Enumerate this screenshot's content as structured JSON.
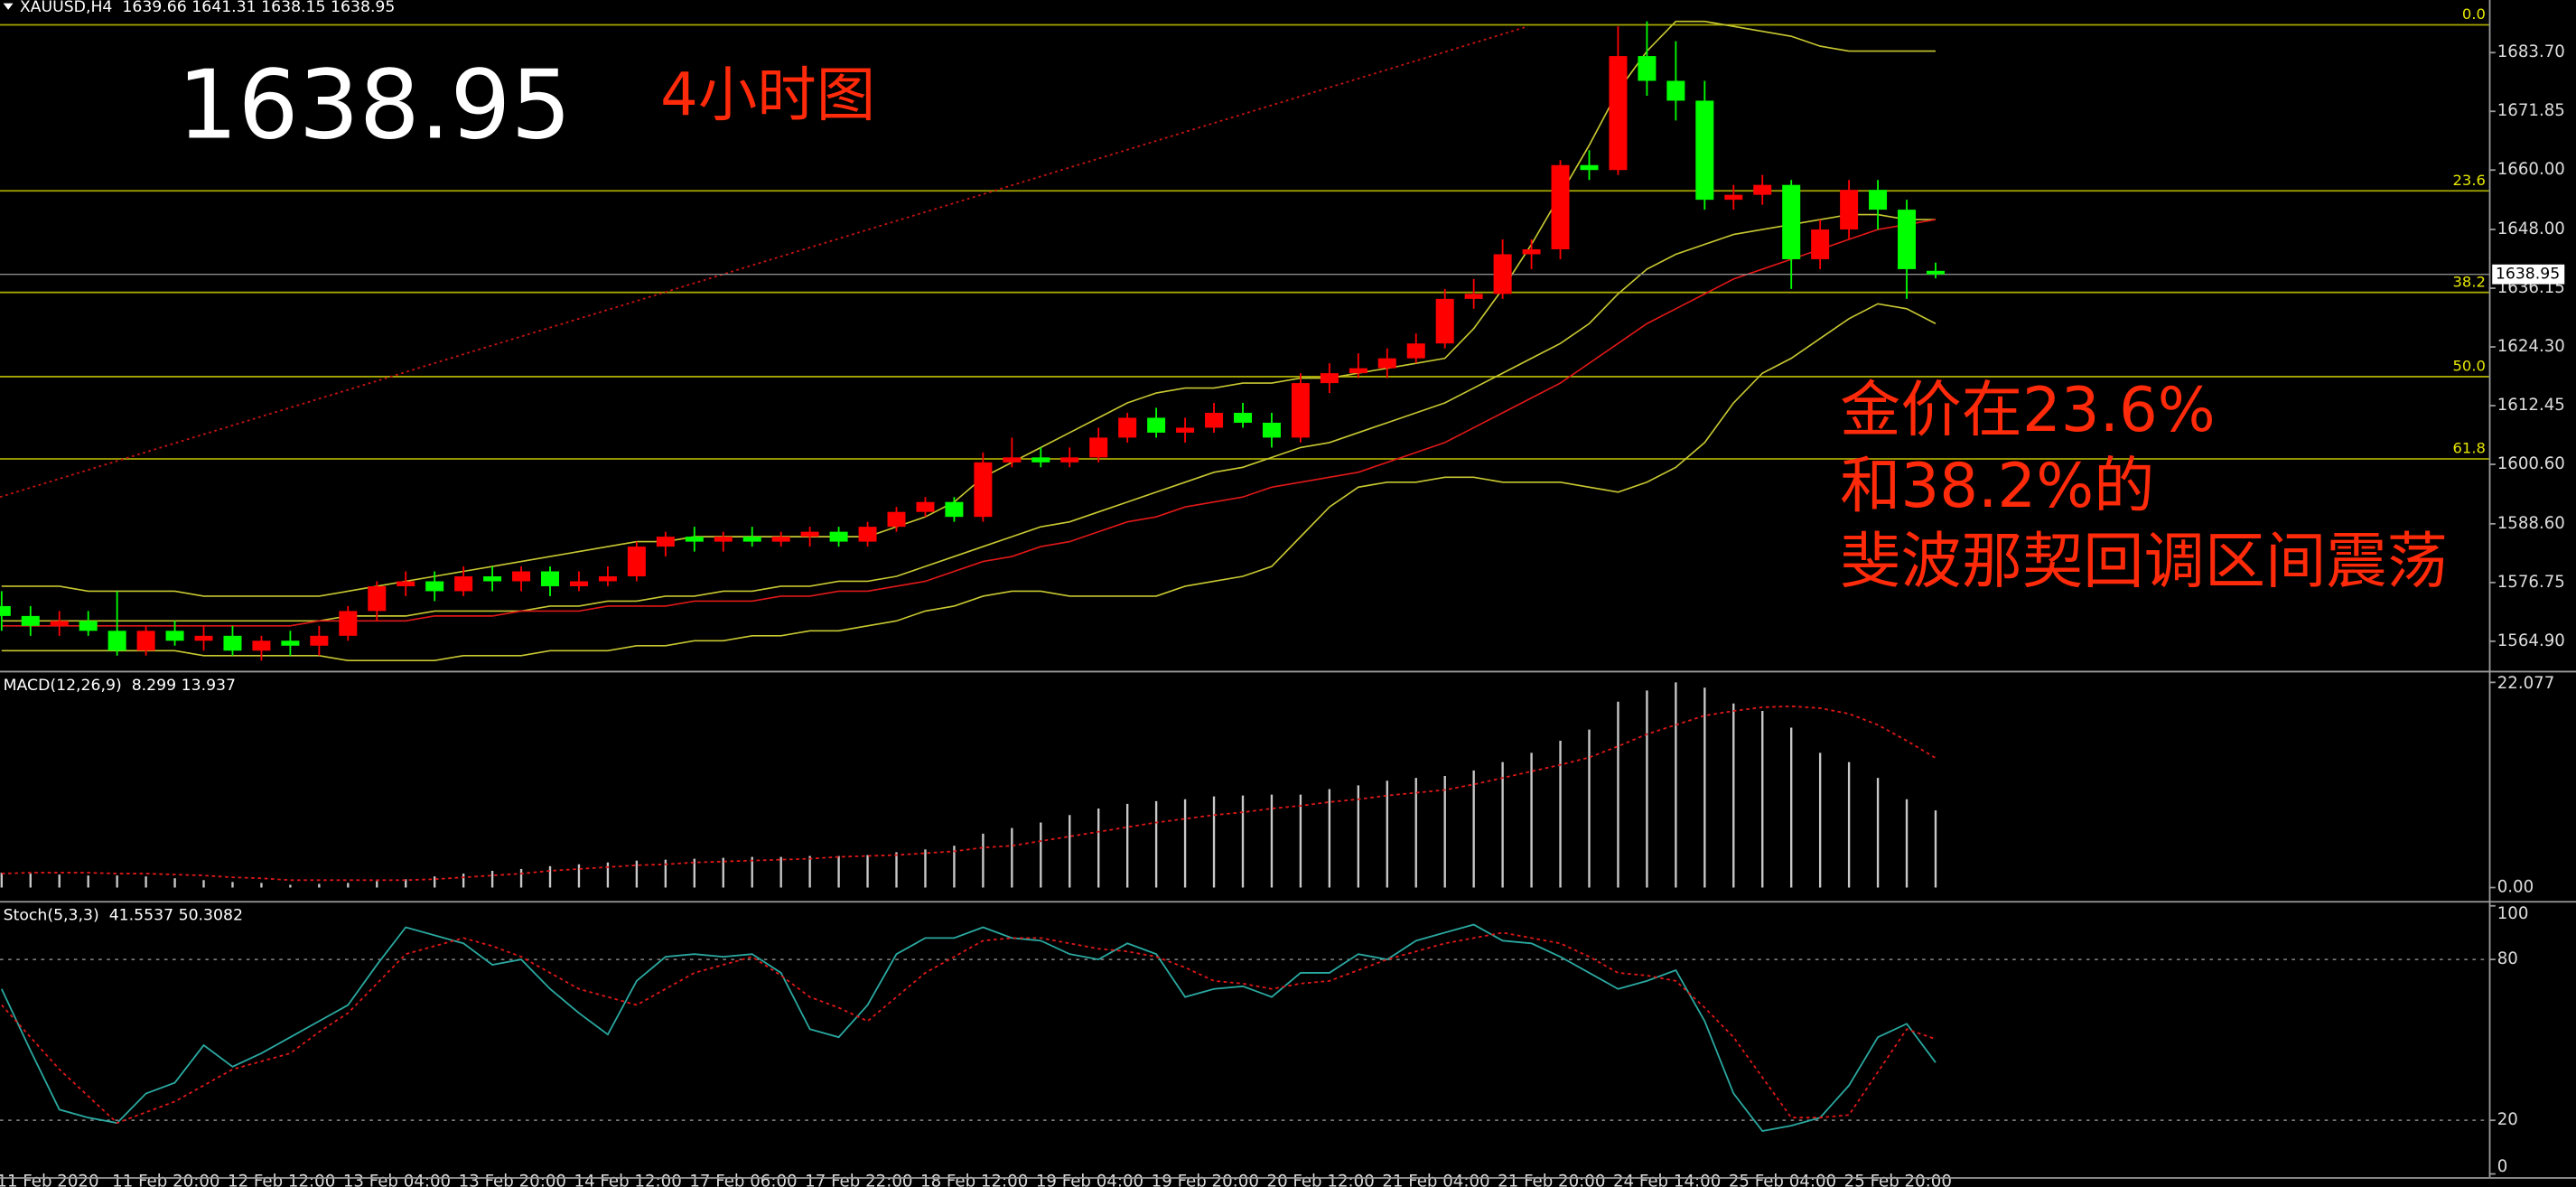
{
  "chart_data": [
    {
      "type": "candlestick",
      "symbol": "XAUUSD,H4",
      "annotations": [
        "4小时图",
        "金价在23.6%",
        "和38.2%的",
        "斐波那契回调区间震荡"
      ],
      "categories": [
        "11 Feb 2020",
        null,
        null,
        null,
        "11 Feb 20:00",
        null,
        null,
        null,
        "12 Feb 12:00",
        null,
        null,
        null,
        "13 Feb 04:00",
        null,
        null,
        null,
        "13 Feb 20:00",
        null,
        null,
        null,
        "14 Feb 12:00",
        null,
        null,
        null,
        "17 Feb 06:00",
        null,
        null,
        null,
        "17 Feb 22:00",
        null,
        null,
        null,
        "18 Feb 12:00",
        null,
        null,
        null,
        "19 Feb 04:00",
        null,
        null,
        null,
        "19 Feb 20:00",
        null,
        null,
        null,
        "20 Feb 12:00",
        null,
        null,
        null,
        "21 Feb 04:00",
        null,
        null,
        null,
        "21 Feb 20:00",
        null,
        null,
        null,
        "24 Feb 14:00",
        null,
        null,
        null,
        "25 Feb 04:00",
        null,
        null,
        null,
        "25 Feb 20:00",
        null,
        null,
        null
      ],
      "open": [
        1572,
        1570,
        1568,
        1569,
        1567,
        1563,
        1567,
        1565,
        1566,
        1563,
        1565,
        1564,
        1566,
        1571,
        1576,
        1577,
        1575,
        1578,
        1577,
        1579,
        1576,
        1577,
        1578,
        1584,
        1586,
        1585,
        1586,
        1585,
        1586,
        1587,
        1585,
        1588,
        1591,
        1593,
        1590,
        1601,
        1602,
        1601,
        1602,
        1606,
        1610,
        1607,
        1608,
        1611,
        1609,
        1606,
        1617,
        1619,
        1620,
        1622,
        1625,
        1634,
        1635,
        1643,
        1644,
        1661,
        1660,
        1683,
        1678,
        1674,
        1654,
        1655,
        1657,
        1642,
        1648,
        1656,
        1652,
        1639.66
      ],
      "high": [
        1575,
        1572,
        1571,
        1571,
        1575,
        1568,
        1569,
        1568,
        1568,
        1566,
        1567,
        1568,
        1572,
        1577,
        1579,
        1579,
        1580,
        1580,
        1580,
        1580,
        1579,
        1580,
        1585,
        1587,
        1588,
        1587,
        1588,
        1587,
        1588,
        1588,
        1589,
        1592,
        1594,
        1594,
        1603,
        1606,
        1604,
        1604,
        1608,
        1611,
        1612,
        1610,
        1613,
        1613,
        1611,
        1619,
        1621,
        1623,
        1624,
        1627,
        1636,
        1638,
        1646,
        1646,
        1662,
        1664,
        1689,
        1690,
        1686,
        1678,
        1657,
        1659,
        1658,
        1650,
        1658,
        1658,
        1654,
        1641.31
      ],
      "low": [
        1567,
        1566,
        1566,
        1566,
        1562,
        1562,
        1564,
        1563,
        1562,
        1561,
        1562,
        1562,
        1565,
        1569,
        1574,
        1573,
        1574,
        1575,
        1575,
        1574,
        1575,
        1576,
        1577,
        1582,
        1583,
        1583,
        1584,
        1584,
        1584,
        1584,
        1584,
        1587,
        1590,
        1589,
        1589,
        1600,
        1600,
        1600,
        1601,
        1605,
        1606,
        1605,
        1607,
        1608,
        1604,
        1605,
        1615,
        1618,
        1618,
        1621,
        1624,
        1632,
        1634,
        1640,
        1642,
        1658,
        1659,
        1675,
        1670,
        1652,
        1652,
        1653,
        1636,
        1640,
        1646,
        1648,
        1634,
        1638.15
      ],
      "close": [
        1570,
        1568,
        1569,
        1567,
        1563,
        1567,
        1565,
        1566,
        1563,
        1565,
        1564,
        1566,
        1571,
        1576,
        1577,
        1575,
        1578,
        1577,
        1579,
        1576,
        1577,
        1578,
        1584,
        1586,
        1585,
        1586,
        1585,
        1586,
        1587,
        1585,
        1588,
        1591,
        1593,
        1590,
        1601,
        1602,
        1601,
        1602,
        1606,
        1610,
        1607,
        1608,
        1611,
        1609,
        1606,
        1617,
        1619,
        1620,
        1622,
        1625,
        1634,
        1635,
        1643,
        1644,
        1661,
        1660,
        1683,
        1678,
        1674,
        1654,
        1655,
        1657,
        1642,
        1648,
        1656,
        1652,
        1640,
        1638.95
      ],
      "up_color": "#ff0000",
      "down_color": "#00ff00",
      "ylim": [
        1558.94,
        1691.0
      ],
      "yticks": [
        {
          "value": 1683.7,
          "label": "1683.70"
        },
        1671.85,
        {
          "value": 1660,
          "label": "1660.00"
        },
        {
          "value": 1648,
          "label": "1648.00"
        },
        1636.15,
        {
          "value": 1624.3,
          "label": "1624.30"
        },
        1612.45,
        {
          "value": 1600.6,
          "label": "1600.60"
        },
        {
          "value": 1588.6,
          "label": "1588.60"
        },
        1576.75,
        {
          "value": 1564.9,
          "label": "1564.90"
        }
      ],
      "grid": false,
      "series": [
        {
          "color": "#c8c832",
          "values": [
            1576,
            1576,
            1576,
            1575,
            1575,
            1575,
            1575,
            1574,
            1574,
            1574,
            1574,
            1574,
            1575,
            1576,
            1577,
            1578,
            1579,
            1580,
            1581,
            1582,
            1583,
            1584,
            1585,
            1585,
            1586,
            1586,
            1586,
            1586,
            1586,
            1586,
            1586,
            1588,
            1590,
            1593,
            1598,
            1601,
            1604,
            1607,
            1610,
            1613,
            1615,
            1616,
            1616,
            1617,
            1617,
            1618,
            1618,
            1619,
            1620,
            1621,
            1622,
            1628,
            1636,
            1645,
            1655,
            1665,
            1676,
            1684,
            1690,
            1690,
            1689,
            1688,
            1687,
            1685,
            1684,
            1684,
            1684,
            1684
          ]
        },
        {
          "color": "#c8c832",
          "values": [
            1569,
            1569,
            1569,
            1569,
            1569,
            1569,
            1569,
            1569,
            1569,
            1569,
            1569,
            1569,
            1570,
            1570,
            1570,
            1571,
            1571,
            1571,
            1571,
            1572,
            1572,
            1573,
            1573,
            1574,
            1574,
            1575,
            1575,
            1576,
            1576,
            1577,
            1577,
            1578,
            1580,
            1582,
            1584,
            1586,
            1588,
            1589,
            1591,
            1593,
            1595,
            1597,
            1599,
            1600,
            1602,
            1604,
            1605,
            1607,
            1609,
            1611,
            1613,
            1616,
            1619,
            1622,
            1625,
            1629,
            1635,
            1640,
            1643,
            1645,
            1647,
            1648,
            1649,
            1650,
            1651,
            1651,
            1650,
            1650
          ]
        },
        {
          "color": "#c8c832",
          "values": [
            1563,
            1563,
            1563,
            1563,
            1563,
            1563,
            1563,
            1562,
            1562,
            1562,
            1562,
            1562,
            1561,
            1561,
            1561,
            1561,
            1562,
            1562,
            1562,
            1563,
            1563,
            1563,
            1564,
            1564,
            1565,
            1565,
            1566,
            1566,
            1567,
            1567,
            1568,
            1569,
            1571,
            1572,
            1574,
            1575,
            1575,
            1574,
            1574,
            1574,
            1574,
            1576,
            1577,
            1578,
            1580,
            1586,
            1592,
            1596,
            1597,
            1597,
            1598,
            1598,
            1597,
            1597,
            1597,
            1596,
            1595,
            1597,
            1600,
            1605,
            1613,
            1619,
            1622,
            1626,
            1630,
            1633,
            1632,
            1629
          ]
        },
        {
          "color": "#e01818",
          "values": [
            1568,
            1568,
            1568,
            1568,
            1568,
            1568,
            1568,
            1568,
            1568,
            1568,
            1568,
            1569,
            1569,
            1569,
            1569,
            1570,
            1570,
            1570,
            1571,
            1571,
            1571,
            1572,
            1572,
            1572,
            1573,
            1573,
            1573,
            1574,
            1574,
            1575,
            1575,
            1576,
            1577,
            1579,
            1581,
            1582,
            1584,
            1585,
            1587,
            1589,
            1590,
            1592,
            1593,
            1594,
            1596,
            1597,
            1598,
            1599,
            1601,
            1603,
            1605,
            1608,
            1611,
            1614,
            1617,
            1621,
            1625,
            1629,
            1632,
            1635,
            1638,
            1640,
            1642,
            1644,
            1646,
            1648,
            1649,
            1650
          ]
        }
      ],
      "fib_color": "#a8a800",
      "fib_levels": [
        {
          "label": "0.0",
          "value": 1689.3
        },
        {
          "label": "23.6",
          "value": 1655.8
        },
        {
          "label": "38.2",
          "value": 1635.3
        },
        {
          "label": "50.0",
          "value": 1618.3
        },
        {
          "label": "61.8",
          "value": 1601.7
        }
      ],
      "trendline": {
        "color": "#c81414",
        "values": [
          1594,
          1689
        ]
      }
    },
    {
      "type": "bar",
      "title": "MACD(12,26,9)",
      "ylim": [
        -1.44,
        22.97
      ],
      "yticks": [
        22.077,
        {
          "value": 0,
          "label": "0.00"
        }
      ],
      "series": [
        {
          "type": "bar",
          "color": "#c8c8c8",
          "values": [
            1.6,
            1.5,
            1.4,
            1.3,
            1.3,
            1.2,
            1.0,
            0.8,
            0.6,
            0.5,
            0.3,
            0.4,
            0.5,
            0.7,
            0.9,
            1.2,
            1.5,
            1.8,
            2.0,
            2.3,
            2.5,
            2.7,
            2.9,
            3.0,
            3.1,
            3.2,
            3.3,
            3.3,
            3.4,
            3.4,
            3.5,
            3.8,
            4.1,
            4.5,
            5.8,
            6.4,
            7.0,
            7.8,
            8.5,
            9.0,
            9.3,
            9.5,
            9.8,
            9.9,
            10.0,
            10.0,
            10.6,
            11.0,
            11.5,
            11.8,
            12.0,
            12.6,
            13.5,
            14.5,
            15.8,
            17.0,
            20.0,
            21.2,
            22.077,
            21.5,
            19.8,
            19.0,
            17.2,
            14.5,
            13.5,
            11.8,
            9.5,
            8.299
          ]
        },
        {
          "type": "line",
          "color": "#e01818",
          "values": [
            1.5,
            1.6,
            1.6,
            1.6,
            1.5,
            1.5,
            1.4,
            1.3,
            1.1,
            1.0,
            0.8,
            0.8,
            0.8,
            0.8,
            0.8,
            0.9,
            1.1,
            1.3,
            1.5,
            1.8,
            2.0,
            2.2,
            2.4,
            2.5,
            2.7,
            2.8,
            2.9,
            3.0,
            3.1,
            3.3,
            3.4,
            3.5,
            3.7,
            3.9,
            4.3,
            4.5,
            5.0,
            5.5,
            6.0,
            6.5,
            7.0,
            7.4,
            7.8,
            8.1,
            8.5,
            8.8,
            9.2,
            9.5,
            9.9,
            10.2,
            10.5,
            11.1,
            11.8,
            12.5,
            13.2,
            14.0,
            15.2,
            16.5,
            17.5,
            18.5,
            19.0,
            19.4,
            19.5,
            19.3,
            18.7,
            17.5,
            15.8,
            13.937
          ]
        }
      ]
    },
    {
      "type": "line",
      "title": "Stoch(5,3,3)",
      "ylim": [
        -1.2,
        100.6
      ],
      "yticks": [
        100,
        80,
        20,
        0
      ],
      "series": [
        {
          "color": "#2aa8a0",
          "values": [
            69,
            46,
            24,
            21,
            19,
            30,
            34,
            48,
            40,
            45,
            51,
            57,
            63,
            78,
            92,
            89,
            86,
            78,
            80,
            69,
            60,
            52,
            72,
            81,
            82,
            81,
            82,
            75,
            54,
            51,
            63,
            82,
            88,
            88,
            92,
            88,
            87,
            82,
            80,
            86,
            82,
            66,
            69,
            70,
            66,
            75,
            75,
            82,
            80,
            87,
            90,
            93,
            87,
            86,
            81,
            75,
            69,
            72,
            76,
            57,
            30,
            16,
            18,
            21,
            33,
            51,
            56,
            41.5537
          ]
        },
        {
          "color": "#e01818",
          "values": [
            63,
            51,
            39,
            29,
            19,
            23,
            27,
            33,
            39,
            42,
            45,
            53,
            60,
            71,
            82,
            85,
            88,
            85,
            81,
            75,
            69,
            66,
            63,
            69,
            75,
            78,
            81,
            74,
            66,
            62,
            57,
            66,
            75,
            81,
            87,
            88,
            88,
            86,
            84,
            83,
            81,
            77,
            72,
            71,
            69,
            71,
            72,
            76,
            80,
            83,
            86,
            88,
            90,
            88,
            86,
            81,
            75,
            74,
            72,
            62,
            51,
            36,
            21,
            21,
            22,
            38,
            54,
            50.3082
          ]
        }
      ]
    }
  ]
}
